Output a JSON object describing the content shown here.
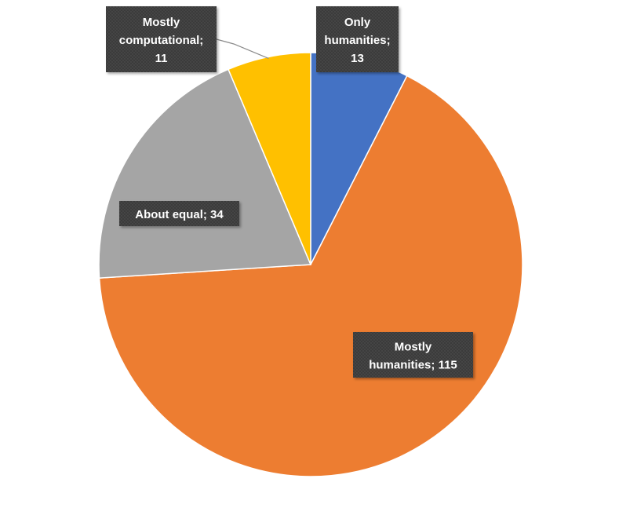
{
  "chart_data": {
    "type": "pie",
    "title": "",
    "categories": [
      "Only humanities",
      "Mostly humanities",
      "About equal",
      "Mostly computational"
    ],
    "values": [
      13,
      115,
      34,
      11
    ],
    "colors": [
      "#4472c4",
      "#ed7d31",
      "#a5a5a5",
      "#ffc000"
    ],
    "start_angle_deg": 0,
    "direction": "clockwise",
    "legend": "none",
    "labels": [
      {
        "lines": [
          "Only",
          "humanities;",
          "13"
        ]
      },
      {
        "lines": [
          "Mostly",
          "humanities; 115"
        ]
      },
      {
        "lines": [
          "About equal; 34"
        ]
      },
      {
        "lines": [
          "Mostly",
          "computational;",
          "11"
        ]
      }
    ],
    "label_style": {
      "box_color": "#3a3a3a",
      "text_color": "#ffffff"
    }
  }
}
